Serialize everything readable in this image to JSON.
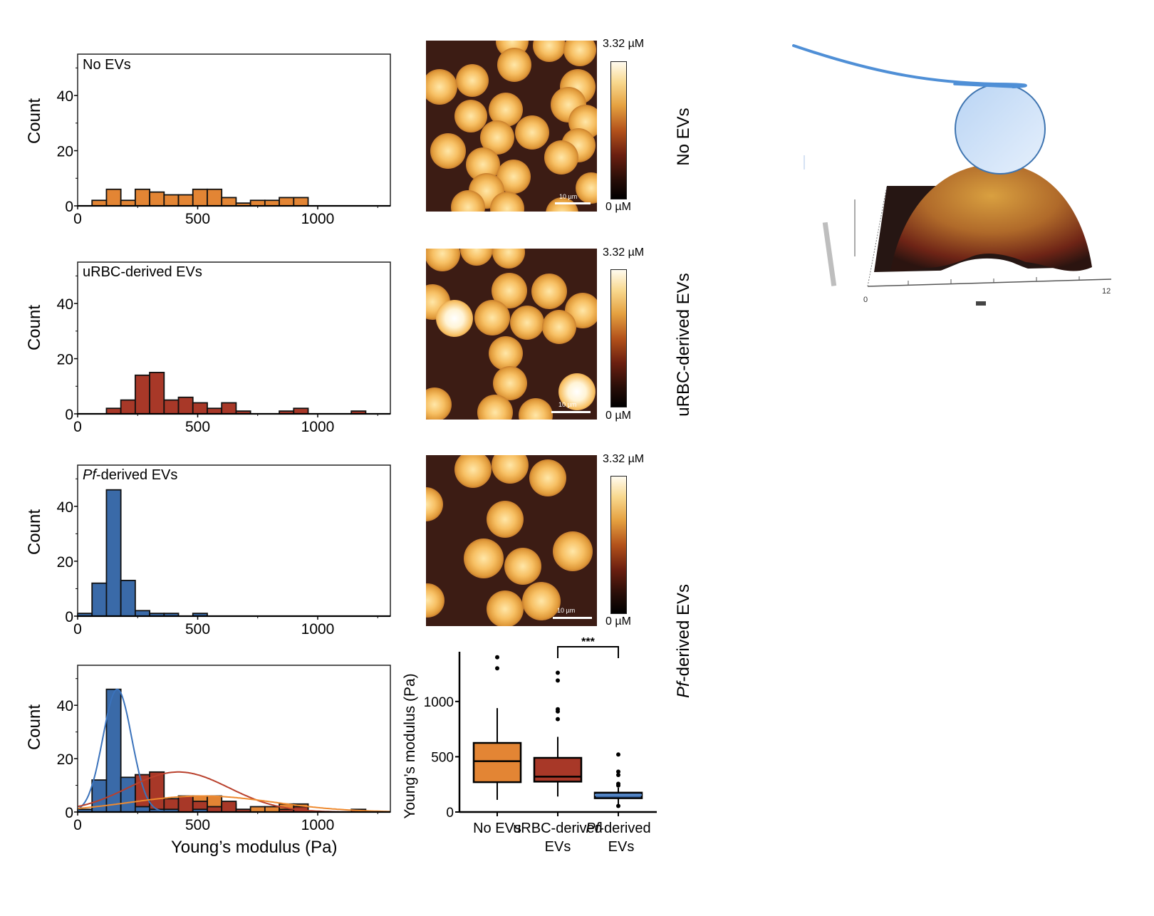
{
  "chart_data": [
    {
      "type": "bar",
      "subtype": "histogram",
      "panel": "No EVs",
      "title": "No EVs",
      "xlabel": "",
      "ylabel": "Count",
      "xlim": [
        0,
        1300
      ],
      "ylim": [
        0,
        55
      ],
      "xticks": [
        0,
        500,
        1000
      ],
      "yticks": [
        0,
        20,
        40
      ],
      "bin_width": 60,
      "color": "#e38534",
      "bins": [
        {
          "x0": 60,
          "count": 2
        },
        {
          "x0": 120,
          "count": 6
        },
        {
          "x0": 180,
          "count": 2
        },
        {
          "x0": 240,
          "count": 6
        },
        {
          "x0": 300,
          "count": 5
        },
        {
          "x0": 360,
          "count": 4
        },
        {
          "x0": 420,
          "count": 4
        },
        {
          "x0": 480,
          "count": 6
        },
        {
          "x0": 540,
          "count": 6
        },
        {
          "x0": 600,
          "count": 3
        },
        {
          "x0": 660,
          "count": 1
        },
        {
          "x0": 720,
          "count": 2
        },
        {
          "x0": 780,
          "count": 2
        },
        {
          "x0": 840,
          "count": 3
        },
        {
          "x0": 900,
          "count": 3
        }
      ]
    },
    {
      "type": "bar",
      "subtype": "histogram",
      "panel": "uRBC-derived EVs",
      "title": "uRBC-derived EVs",
      "xlabel": "",
      "ylabel": "Count",
      "xlim": [
        0,
        1300
      ],
      "ylim": [
        0,
        55
      ],
      "xticks": [
        0,
        500,
        1000
      ],
      "yticks": [
        0,
        20,
        40
      ],
      "bin_width": 60,
      "color": "#a83828",
      "bins": [
        {
          "x0": 120,
          "count": 2
        },
        {
          "x0": 180,
          "count": 5
        },
        {
          "x0": 240,
          "count": 14
        },
        {
          "x0": 300,
          "count": 15
        },
        {
          "x0": 360,
          "count": 5
        },
        {
          "x0": 420,
          "count": 6
        },
        {
          "x0": 480,
          "count": 4
        },
        {
          "x0": 540,
          "count": 2
        },
        {
          "x0": 600,
          "count": 4
        },
        {
          "x0": 660,
          "count": 1
        },
        {
          "x0": 840,
          "count": 1
        },
        {
          "x0": 900,
          "count": 2
        },
        {
          "x0": 1140,
          "count": 1
        }
      ]
    },
    {
      "type": "bar",
      "subtype": "histogram",
      "panel": "Pf-derived EVs",
      "title_italic": "Pf",
      "title_rest": "-derived EVs",
      "xlabel": "",
      "ylabel": "Count",
      "xlim": [
        0,
        1300
      ],
      "ylim": [
        0,
        55
      ],
      "xticks": [
        0,
        500,
        1000
      ],
      "yticks": [
        0,
        20,
        40
      ],
      "bin_width": 60,
      "color": "#3a6aa8",
      "bins": [
        {
          "x0": 0,
          "count": 1
        },
        {
          "x0": 60,
          "count": 12
        },
        {
          "x0": 120,
          "count": 46
        },
        {
          "x0": 180,
          "count": 13
        },
        {
          "x0": 240,
          "count": 2
        },
        {
          "x0": 300,
          "count": 1
        },
        {
          "x0": 360,
          "count": 1
        },
        {
          "x0": 480,
          "count": 1
        }
      ]
    },
    {
      "type": "bar",
      "subtype": "overlaid-histogram-with-fits",
      "panel": "combined",
      "xlabel": "Young’s modulus (Pa)",
      "ylabel": "Count",
      "xlim": [
        0,
        1300
      ],
      "ylim": [
        0,
        55
      ],
      "xticks": [
        0,
        500,
        1000
      ],
      "yticks": [
        0,
        20,
        40
      ],
      "draw_order": [
        "No EVs",
        "uRBC-derived EVs",
        "Pf-derived EVs"
      ],
      "fits": [
        {
          "name": "Pf-derived EVs",
          "kind": "gaussian",
          "peak": 46,
          "mean": 165,
          "sd": 60,
          "color": "#3a72bb"
        },
        {
          "name": "uRBC-derived EVs",
          "kind": "gaussian",
          "peak": 15,
          "mean": 420,
          "sd": 210,
          "color": "#b9402c"
        },
        {
          "name": "No EVs",
          "kind": "gaussian",
          "peak": 6,
          "mean": 520,
          "sd": 300,
          "color": "#ee8a2f"
        }
      ]
    },
    {
      "type": "box",
      "ylabel": "Young’s modulus (Pa)",
      "ylim": [
        0,
        1450
      ],
      "yticks": [
        0,
        500,
        1000
      ],
      "categories": [
        {
          "line1": "No EVs",
          "line2": ""
        },
        {
          "line1": "uRBC-derived",
          "line2": "EVs"
        },
        {
          "line1_italic": "Pf",
          "line1": "-derived",
          "line2": "EVs"
        }
      ],
      "boxes": [
        {
          "name": "No EVs",
          "q1": 270,
          "median": 460,
          "q3": 625,
          "whisker_low": 110,
          "whisker_high": 940,
          "outliers": [
            1300,
            1400
          ],
          "color": "#e38534"
        },
        {
          "name": "uRBC-derived EVs",
          "q1": 275,
          "median": 320,
          "q3": 490,
          "whisker_low": 140,
          "whisker_high": 680,
          "outliers": [
            840,
            910,
            930,
            1190,
            1260
          ],
          "color": "#a83828"
        },
        {
          "name": "Pf-derived EVs",
          "q1": 125,
          "median": 155,
          "q3": 175,
          "whisker_low": 55,
          "whisker_high": 220,
          "outliers": [
            55,
            240,
            255,
            335,
            365,
            520
          ],
          "color": "#3a6aa8"
        }
      ],
      "significance": {
        "label": "***",
        "between": [
          "uRBC-derived EVs",
          "Pf-derived EVs"
        ]
      }
    }
  ],
  "afm_images": [
    {
      "condition": "No EVs",
      "colorbar_max": "3.32 µM",
      "colorbar_min": "0 µM",
      "scale_bar": "10 µm"
    },
    {
      "condition": "uRBC-derived EVs",
      "colorbar_max": "3.32 µM",
      "colorbar_min": "0 µM",
      "scale_bar": "10 µm"
    },
    {
      "condition": "Pf-derived EVs",
      "colorbar_max": "3.32 µM",
      "colorbar_min": "0 µM",
      "scale_bar": "10 µm"
    }
  ],
  "row_labels": [
    {
      "text": "No EVs"
    },
    {
      "text": "uRBC-derived EVs"
    },
    {
      "italic": "Pf",
      "text": "-derived EVs"
    }
  ],
  "diagram": {
    "description": "AFM cantilever with spherical bead indenting a cell (3D height map)",
    "cantilever_color": "#4f8fd6",
    "bead_color": "#cfe2f8",
    "axis_tick_left": "0",
    "axis_tick_right": "12"
  }
}
